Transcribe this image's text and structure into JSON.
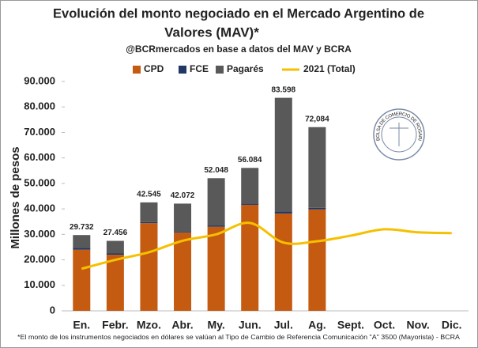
{
  "chart_data": {
    "type": "bar",
    "title": [
      "Evolución del monto negociado en el Mercado Argentino de",
      "Valores (MAV)*"
    ],
    "subtitle": "@BCRmercados en base a datos del MAV y BCRA",
    "y_label": "Millones de pesos",
    "footnote": "*El monto de los instrumentos negociados en dólares se valúan al Tipo de Cambio de Referencia Comunicación \"A\" 3500 (Mayorista) - BCRA",
    "logo_text": "BOLSA DE COMERCIO DE ROSARIO",
    "categories": [
      "En.",
      "Febr.",
      "Mzo.",
      "Abr.",
      "My.",
      "Jun.",
      "Jul.",
      "Ag.",
      "Sept.",
      "Oct.",
      "Nov.",
      "Dic."
    ],
    "series": [
      {
        "name": "CPD",
        "color": "#c55a11",
        "values": [
          24000,
          22000,
          34400,
          30700,
          33000,
          41600,
          38200,
          39800,
          null,
          null,
          null,
          null
        ]
      },
      {
        "name": "FCE",
        "color": "#1f3864",
        "values": [
          700,
          500,
          400,
          300,
          500,
          500,
          800,
          600,
          null,
          null,
          null,
          null
        ]
      },
      {
        "name": "Pagarés",
        "color": "#595959",
        "values": [
          5032,
          4956,
          7745,
          11072,
          18548,
          13984,
          44598,
          31684,
          null,
          null,
          null,
          null
        ]
      },
      {
        "name": "2021 (Total)",
        "color": "#f5c000",
        "type": "line",
        "values": [
          16500,
          20000,
          23000,
          27500,
          30000,
          34500,
          26800,
          27300,
          29500,
          32000,
          30800,
          30500
        ]
      }
    ],
    "totals": {
      "values": [
        29732,
        27456,
        42545,
        42072,
        52048,
        56084,
        83598,
        72084,
        null,
        null,
        null,
        null
      ],
      "value_labels": [
        "29.732",
        "27.456",
        "42.545",
        "42.072",
        "52.048",
        "56.084",
        "83.598",
        "72,084",
        null,
        null,
        null,
        null
      ]
    },
    "ylim": [
      0,
      90000
    ],
    "yticks": [
      0,
      {
        "value": 10000,
        "label": "10.000"
      },
      {
        "value": 20000,
        "label": "20.000"
      },
      {
        "value": 30000,
        "label": "30.000"
      },
      {
        "value": 40000,
        "label": "40.000"
      },
      {
        "value": 50000,
        "label": "50.000"
      },
      {
        "value": 60000,
        "label": "60.000"
      },
      {
        "value": 70000,
        "label": "70.000"
      },
      {
        "value": 80000,
        "label": "80.000"
      },
      {
        "value": 90000,
        "label": "90.000"
      }
    ],
    "grid": false,
    "legend": "top"
  }
}
